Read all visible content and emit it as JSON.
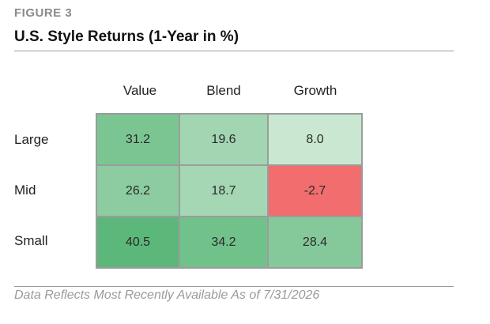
{
  "figure_label": "FIGURE 3",
  "title": "U.S. Style Returns (1-Year in %)",
  "footnote": "Data Reflects Most Recently Available As of 7/31/2026",
  "chart_data": {
    "type": "heatmap",
    "title": "U.S. Style Returns (1-Year in %)",
    "columns": [
      "Value",
      "Blend",
      "Growth"
    ],
    "rows": [
      "Large",
      "Mid",
      "Small"
    ],
    "values": [
      [
        31.2,
        19.6,
        8.0
      ],
      [
        26.2,
        18.7,
        -2.7
      ],
      [
        40.5,
        34.2,
        28.4
      ]
    ],
    "value_labels": [
      [
        "31.2",
        "19.6",
        "8.0"
      ],
      [
        "26.2",
        "18.7",
        "-2.7"
      ],
      [
        "40.5",
        "34.2",
        "28.4"
      ]
    ],
    "colors": {
      "positive_high": "#5cb87a",
      "positive_low": "#e4f2e7",
      "negative": "#f26d6d",
      "border": "#9c9c9c"
    }
  }
}
